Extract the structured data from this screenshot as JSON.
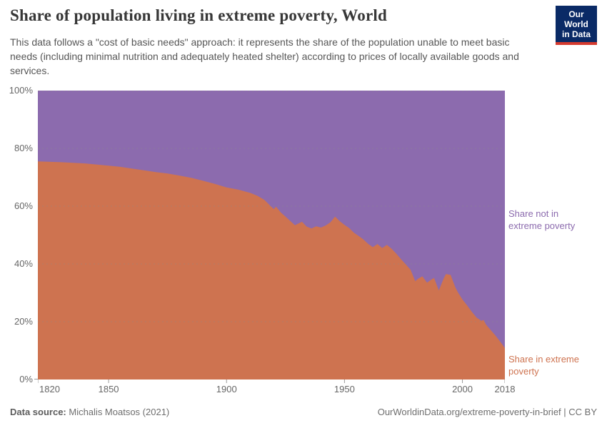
{
  "header": {
    "title": "Share of population living in extreme poverty, World",
    "subtitle": "This data follows a \"cost of basic needs\" approach: it represents the share of the population unable to meet basic needs (including minimal nutrition and adequately heated shelter) according to prices of locally available goods and services.",
    "logo": {
      "line1": "Our World",
      "line2": "in Data",
      "bg_color": "#0A2A66",
      "stripe_color": "#D53A2F"
    }
  },
  "chart_data": {
    "type": "area",
    "stacked": true,
    "title": "Share of population living in extreme poverty, World",
    "xlabel": "",
    "ylabel": "",
    "grid": "horizontal dashed",
    "legend_position": "right edge annotations",
    "x_range": [
      1820,
      2018
    ],
    "y_range": [
      0,
      100
    ],
    "x_ticks": [
      "1820",
      "1850",
      "1900",
      "1950",
      "2000",
      "2018"
    ],
    "y_ticks": [
      "0%",
      "20%",
      "40%",
      "60%",
      "80%",
      "100%"
    ],
    "x": [
      1820,
      1830,
      1840,
      1850,
      1855,
      1860,
      1865,
      1870,
      1875,
      1880,
      1885,
      1890,
      1895,
      1900,
      1905,
      1910,
      1913,
      1916,
      1918,
      1920,
      1921,
      1923,
      1925,
      1927,
      1929,
      1932,
      1934,
      1936,
      1938,
      1940,
      1942,
      1944,
      1946,
      1948,
      1950,
      1952,
      1954,
      1956,
      1958,
      1960,
      1962,
      1964,
      1966,
      1968,
      1970,
      1972,
      1974,
      1976,
      1978,
      1980,
      1981,
      1983,
      1985,
      1987,
      1988,
      1990,
      1992,
      1993,
      1995,
      1997,
      1998,
      2000,
      2002,
      2004,
      2006,
      2008,
      2009,
      2010,
      2012,
      2014,
      2016,
      2018
    ],
    "series": [
      {
        "name": "Share in extreme poverty",
        "color": "#CE7350",
        "values": [
          75.5,
          75.2,
          74.8,
          74.0,
          73.6,
          73.0,
          72.4,
          71.8,
          71.3,
          70.6,
          69.8,
          68.8,
          67.7,
          66.5,
          65.7,
          64.6,
          63.6,
          62.2,
          60.6,
          59.0,
          59.8,
          57.8,
          56.4,
          54.9,
          53.4,
          54.6,
          52.9,
          52.3,
          53.0,
          52.6,
          53.3,
          54.4,
          56.4,
          54.8,
          53.5,
          52.4,
          50.8,
          49.7,
          48.5,
          47.0,
          45.8,
          46.9,
          45.5,
          46.6,
          45.2,
          43.5,
          41.6,
          39.8,
          38.0,
          34.0,
          34.8,
          35.7,
          33.5,
          34.7,
          35.1,
          30.8,
          34.9,
          36.5,
          36.2,
          31.9,
          30.3,
          27.7,
          25.6,
          23.4,
          21.4,
          20.3,
          20.6,
          19.0,
          17.1,
          15.2,
          13.1,
          10.9
        ]
      },
      {
        "name": "Share not in extreme poverty",
        "color": "#8C6BAE",
        "values": [
          24.5,
          24.8,
          25.2,
          26.0,
          26.4,
          27.0,
          27.6,
          28.2,
          28.7,
          29.4,
          30.2,
          31.2,
          32.3,
          33.5,
          34.3,
          35.4,
          36.4,
          37.8,
          39.4,
          41.0,
          40.2,
          42.2,
          43.6,
          45.1,
          46.6,
          45.4,
          47.1,
          47.7,
          47.0,
          47.4,
          46.7,
          45.6,
          43.6,
          45.2,
          46.5,
          47.6,
          49.2,
          50.3,
          51.5,
          53.0,
          54.2,
          53.1,
          54.5,
          53.4,
          54.8,
          56.5,
          58.4,
          60.2,
          62.0,
          66.0,
          65.2,
          64.3,
          66.5,
          65.3,
          64.9,
          69.2,
          65.1,
          63.5,
          63.8,
          68.1,
          69.7,
          72.3,
          74.4,
          76.6,
          78.6,
          79.7,
          79.4,
          81.0,
          82.9,
          84.8,
          86.9,
          89.1
        ]
      }
    ]
  },
  "footer": {
    "source_label": "Data source:",
    "source_value": " Michalis Moatsos (2021)",
    "credit": "OurWorldinData.org/extreme-poverty-in-brief | CC BY"
  }
}
